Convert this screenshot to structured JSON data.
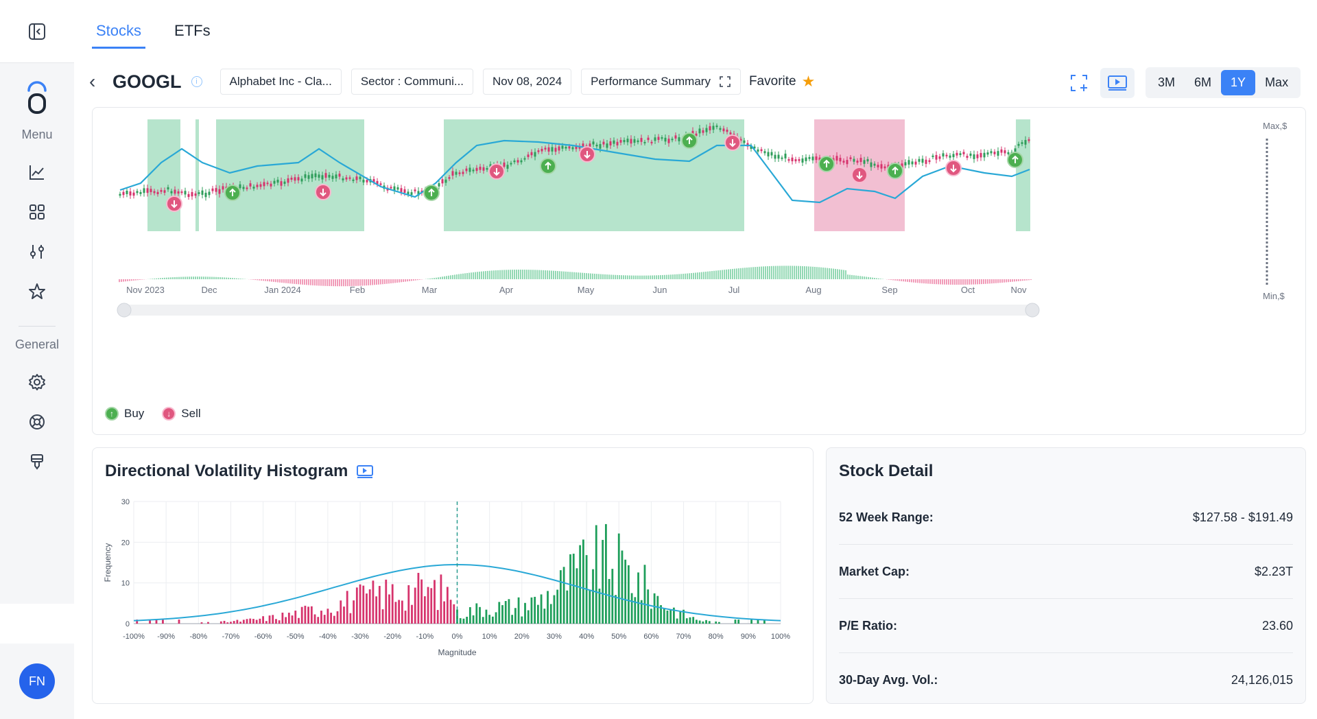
{
  "sidebar": {
    "menu_label": "Menu",
    "general_label": "General",
    "avatar_initials": "FN"
  },
  "tabs": [
    {
      "label": "Stocks",
      "active": true
    },
    {
      "label": "ETFs",
      "active": false
    }
  ],
  "toolbar": {
    "ticker": "GOOGL",
    "company": "Alphabet Inc - Cla...",
    "sector": "Sector : Communi...",
    "date": "Nov 08, 2024",
    "summary": "Performance Summary",
    "favorite": "Favorite",
    "ranges": [
      "3M",
      "6M",
      "1Y",
      "Max"
    ],
    "active_range": "1Y"
  },
  "main_chart": {
    "max_label": "Max,$",
    "min_label": "Min,$",
    "months": [
      "Nov 2023",
      "Dec",
      "Jan 2024",
      "Feb",
      "Mar",
      "Apr",
      "May",
      "Jun",
      "Jul",
      "Aug",
      "Sep",
      "Oct",
      "Nov"
    ],
    "legend": {
      "buy": "Buy",
      "sell": "Sell"
    },
    "colors": {
      "buy": "#4caf50",
      "sell": "#e0577f",
      "line": "#29a8d6",
      "green_zone": "#b6e4cc",
      "red_zone": "#f2bfd2"
    }
  },
  "histogram": {
    "title": "Directional Volatility Histogram",
    "chart_data": {
      "type": "bar",
      "xlabel": "Magnitude",
      "ylabel": "Frequency",
      "x_ticks": [
        "-100%",
        "-90%",
        "-80%",
        "-70%",
        "-60%",
        "-50%",
        "-40%",
        "-30%",
        "-20%",
        "-10%",
        "0%",
        "10%",
        "20%",
        "30%",
        "40%",
        "50%",
        "60%",
        "70%",
        "80%",
        "90%",
        "100%"
      ],
      "y_ticks": [
        "0",
        "10",
        "20",
        "30"
      ],
      "ylim": [
        0,
        30
      ],
      "xlim": [
        -100,
        100
      ],
      "negative_color": "#d6336c",
      "positive_color": "#1e9e5a",
      "curve_color": "#29a8d6"
    }
  },
  "stock_detail": {
    "title": "Stock Detail",
    "rows": [
      {
        "label": "52 Week Range:",
        "value": "$127.58 - $191.49"
      },
      {
        "label": "Market Cap:",
        "value": "$2.23T"
      },
      {
        "label": "P/E Ratio:",
        "value": "23.60"
      },
      {
        "label": "30-Day Avg. Vol.:",
        "value": "24,126,015"
      }
    ]
  }
}
